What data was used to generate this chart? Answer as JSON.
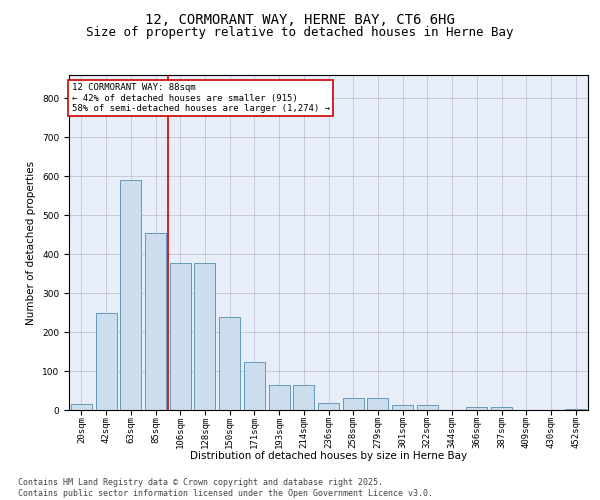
{
  "title_line1": "12, CORMORANT WAY, HERNE BAY, CT6 6HG",
  "title_line2": "Size of property relative to detached houses in Herne Bay",
  "xlabel": "Distribution of detached houses by size in Herne Bay",
  "ylabel": "Number of detached properties",
  "bar_color": "#ccdded",
  "bar_edge_color": "#6699bb",
  "bg_color": "#e8eef8",
  "grid_color": "#bbbbcc",
  "annotation_box_color": "#cc0000",
  "vline_color": "#cc0000",
  "categories": [
    "20sqm",
    "42sqm",
    "63sqm",
    "85sqm",
    "106sqm",
    "128sqm",
    "150sqm",
    "171sqm",
    "193sqm",
    "214sqm",
    "236sqm",
    "258sqm",
    "279sqm",
    "301sqm",
    "322sqm",
    "344sqm",
    "366sqm",
    "387sqm",
    "409sqm",
    "430sqm",
    "452sqm"
  ],
  "values": [
    15,
    248,
    590,
    455,
    378,
    378,
    238,
    123,
    65,
    65,
    18,
    30,
    30,
    12,
    12,
    0,
    8,
    8,
    0,
    0,
    3
  ],
  "ylim": [
    0,
    860
  ],
  "yticks": [
    0,
    100,
    200,
    300,
    400,
    500,
    600,
    700,
    800
  ],
  "vline_pos": 3.5,
  "annotation_text": "12 CORMORANT WAY: 88sqm\n← 42% of detached houses are smaller (915)\n58% of semi-detached houses are larger (1,274) →",
  "footnote": "Contains HM Land Registry data © Crown copyright and database right 2025.\nContains public sector information licensed under the Open Government Licence v3.0.",
  "title_fontsize": 10,
  "subtitle_fontsize": 9,
  "label_fontsize": 7.5,
  "tick_fontsize": 6.5,
  "annotation_fontsize": 6.5,
  "footnote_fontsize": 6
}
